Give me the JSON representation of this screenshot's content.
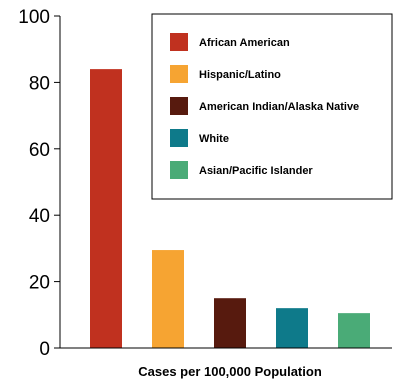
{
  "chart_data": {
    "type": "bar",
    "categories": [
      "African American",
      "Hispanic/Latino",
      "American Indian/Alaska Native",
      "White",
      "Asian/Pacific Islander"
    ],
    "values": [
      84,
      29.5,
      15,
      12,
      10.5
    ],
    "colors": [
      "#c0311f",
      "#f6a432",
      "#571a0e",
      "#0e7a8a",
      "#4aab77"
    ],
    "xlabel": "Cases per 100,000 Population",
    "ylabel": "",
    "ylim": [
      0,
      100
    ],
    "yticks": [
      0,
      20,
      40,
      60,
      80,
      100
    ],
    "grid": false,
    "legend": {
      "placement": "top-right",
      "entries": [
        "African American",
        "Hispanic/Latino",
        "American Indian/Alaska Native",
        "White",
        "Asian/Pacific Islander"
      ]
    }
  }
}
